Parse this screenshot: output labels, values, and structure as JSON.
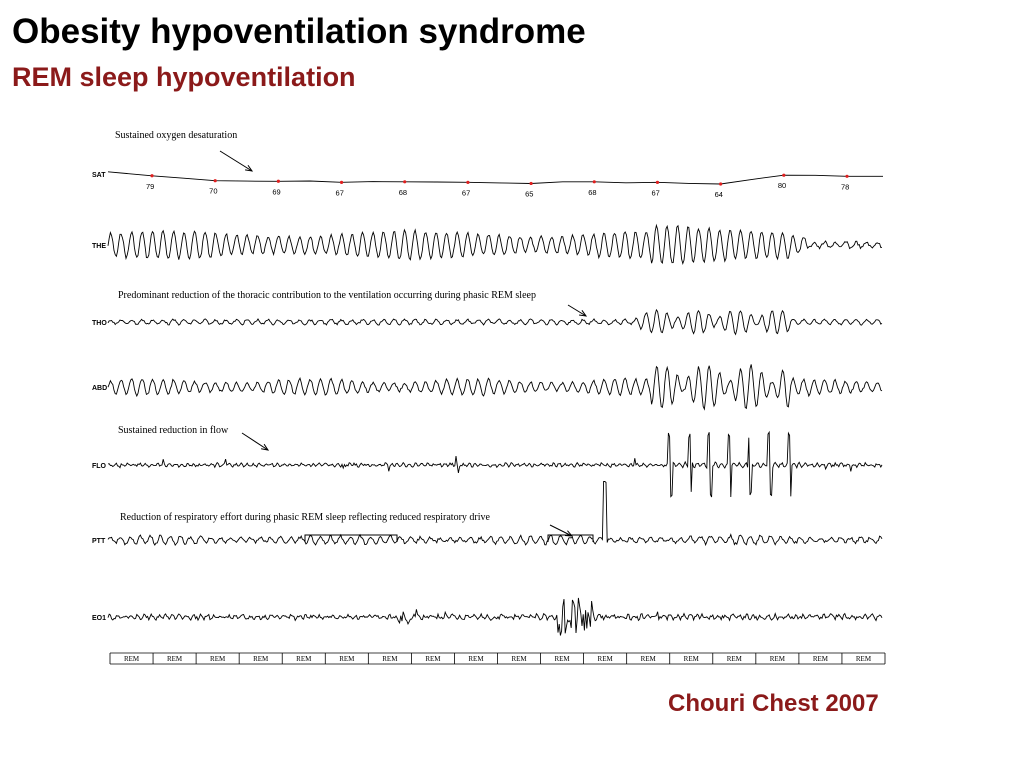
{
  "slide": {
    "title": "Obesity hypoventilation syndrome",
    "subtitle": "REM sleep hypoventilation",
    "citation": "Chouri Chest 2007"
  },
  "colors": {
    "title": "#000000",
    "accent": "#8b1a1a",
    "trace": "#000000",
    "sat_marker": "#e02020"
  },
  "chart_data": {
    "type": "line",
    "channels": [
      "SAT",
      "THE",
      "THO",
      "ABD",
      "FLO",
      "PTT",
      "EO1"
    ],
    "sat_values": [
      79,
      70,
      69,
      67,
      68,
      67,
      65,
      68,
      67,
      64,
      80,
      78
    ],
    "annotations": [
      "Sustained oxygen desaturation",
      "Predominant reduction of the thoracic contribution to the ventilation occurring during phasic REM sleep",
      "Sustained reduction in flow",
      "Reduction of respiratory effort during phasic REM sleep reflecting reduced respiratory drive"
    ],
    "epochs": [
      "REM",
      "REM",
      "REM",
      "REM",
      "REM",
      "REM",
      "REM",
      "REM",
      "REM",
      "REM",
      "REM",
      "REM",
      "REM",
      "REM",
      "REM",
      "REM",
      "REM",
      "REM"
    ]
  }
}
